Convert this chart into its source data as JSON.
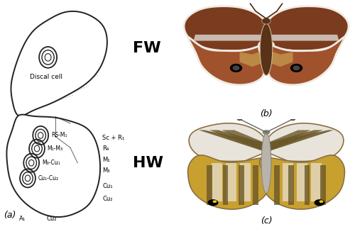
{
  "fig_width": 5.0,
  "fig_height": 3.23,
  "dpi": 100,
  "background": "#ffffff",
  "panel_a": {
    "label": "(a)",
    "fw_label": "FW",
    "hw_label": "HW",
    "discal_cell_label": "Discal cell",
    "hw_vein_labels_right": [
      "Sc + R₁",
      "R₄",
      "M₁",
      "M₃",
      "Cu₁",
      "Cu₂"
    ],
    "hw_bottom_label": "A₁",
    "hw_bottom_label2": "Cu₂",
    "hw_spot_labels": [
      "RS-M₁",
      "M₁-M₃",
      "M₃-Cu₁",
      "Cu₁-Cu₂"
    ],
    "outline_color": "#222222",
    "vein_color": "#e8a0a0",
    "spot_color": "#222222",
    "label_fontsize": 6.5,
    "panel_label_fontsize": 9,
    "fw_hw_fontsize": 16
  },
  "panel_b_label": "(b)",
  "panel_c_label": "(c)",
  "fw_brown_dark": "#7a3b1e",
  "fw_brown_mid": "#a0522d",
  "fw_cream": "#f0ebe3",
  "fw_white_band": "#d8d0c8",
  "fw_yellow": "#c8a050",
  "fw_eye": "#1a1a1a",
  "hw_white": "#e8e4dc",
  "hw_stripe": "#8b7040",
  "hw_yellow_base": "#c8a030",
  "hw_dark_stripe": "#6b5828",
  "hw_eye": "#1a1a1a"
}
